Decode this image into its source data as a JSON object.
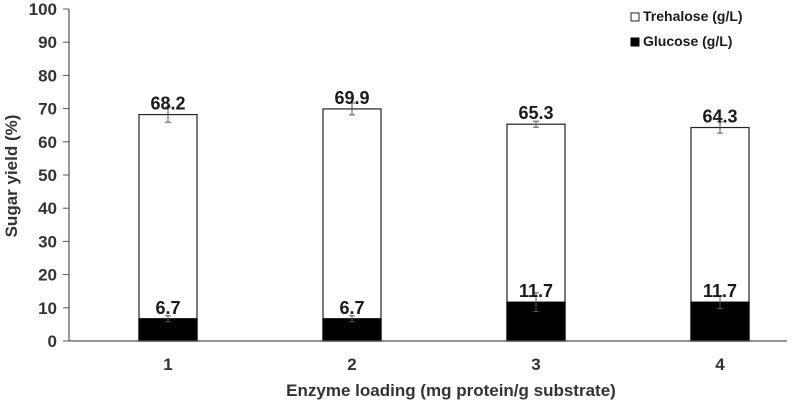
{
  "chart_data": {
    "type": "bar",
    "stacked": false,
    "overlay": true,
    "categories": [
      "1",
      "2",
      "3",
      "4"
    ],
    "xlabel": "Enzyme loading (mg protein/g substrate)",
    "ylabel": "Sugar yield (%)",
    "ylim": [
      0,
      100
    ],
    "yticks": [
      0,
      10,
      20,
      30,
      40,
      50,
      60,
      70,
      80,
      90,
      100
    ],
    "grid": false,
    "legend": "top-right",
    "series": [
      {
        "name": "Trehalose (g/L)",
        "values": [
          68.2,
          69.9,
          65.3,
          64.3
        ],
        "errors": [
          2.3,
          1.8,
          0.9,
          1.7
        ],
        "labels": [
          "68.2",
          "69.9",
          "65.3",
          "64.3"
        ],
        "color": "#ffffff",
        "edge": "#222222"
      },
      {
        "name": "Glucose (g/L)",
        "values": [
          6.7,
          6.7,
          11.7,
          11.7
        ],
        "errors": [
          0.9,
          0.9,
          2.8,
          1.9
        ],
        "labels": [
          "6.7",
          "6.7",
          "11.7",
          "11.7"
        ],
        "color": "#000000",
        "edge": "#000000"
      }
    ]
  }
}
